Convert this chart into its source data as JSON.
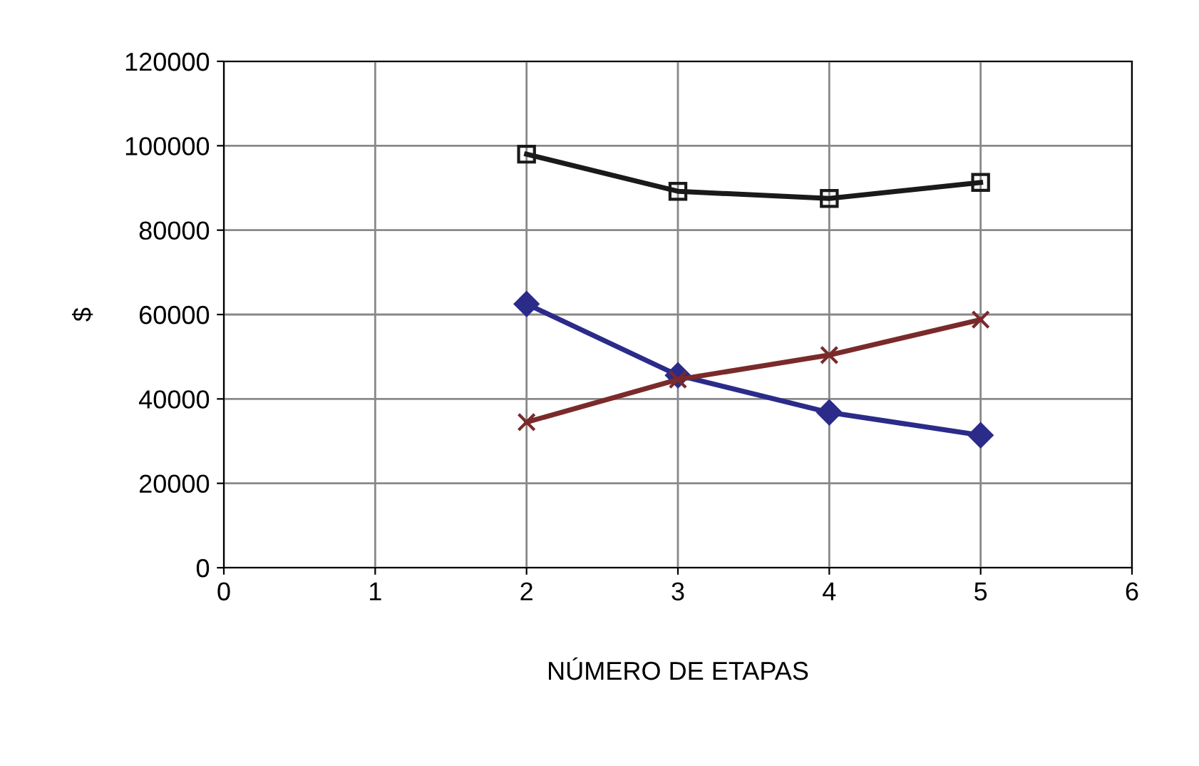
{
  "chart_data": {
    "type": "line",
    "xlabel": "NÚMERO DE ETAPAS",
    "ylabel": "$",
    "xlim": [
      0,
      6
    ],
    "xticks": [
      0,
      1,
      2,
      3,
      4,
      5,
      6
    ],
    "ylim": [
      0,
      120000
    ],
    "yticks": [
      0,
      20000,
      40000,
      60000,
      80000,
      100000,
      120000
    ],
    "grid": true,
    "legend": false,
    "line_style": "solid",
    "x": [
      2,
      3,
      4,
      5
    ],
    "series": [
      {
        "color": "#2b2b8a",
        "marker": "diamond",
        "values": [
          62500,
          45600,
          36800,
          31400
        ]
      },
      {
        "color": "#7a2a2a",
        "marker": "cross",
        "values": [
          34500,
          44600,
          50400,
          58800
        ]
      },
      {
        "color": "#1a1a1a",
        "marker": "square",
        "values": [
          98000,
          89200,
          87500,
          91300
        ]
      }
    ]
  }
}
